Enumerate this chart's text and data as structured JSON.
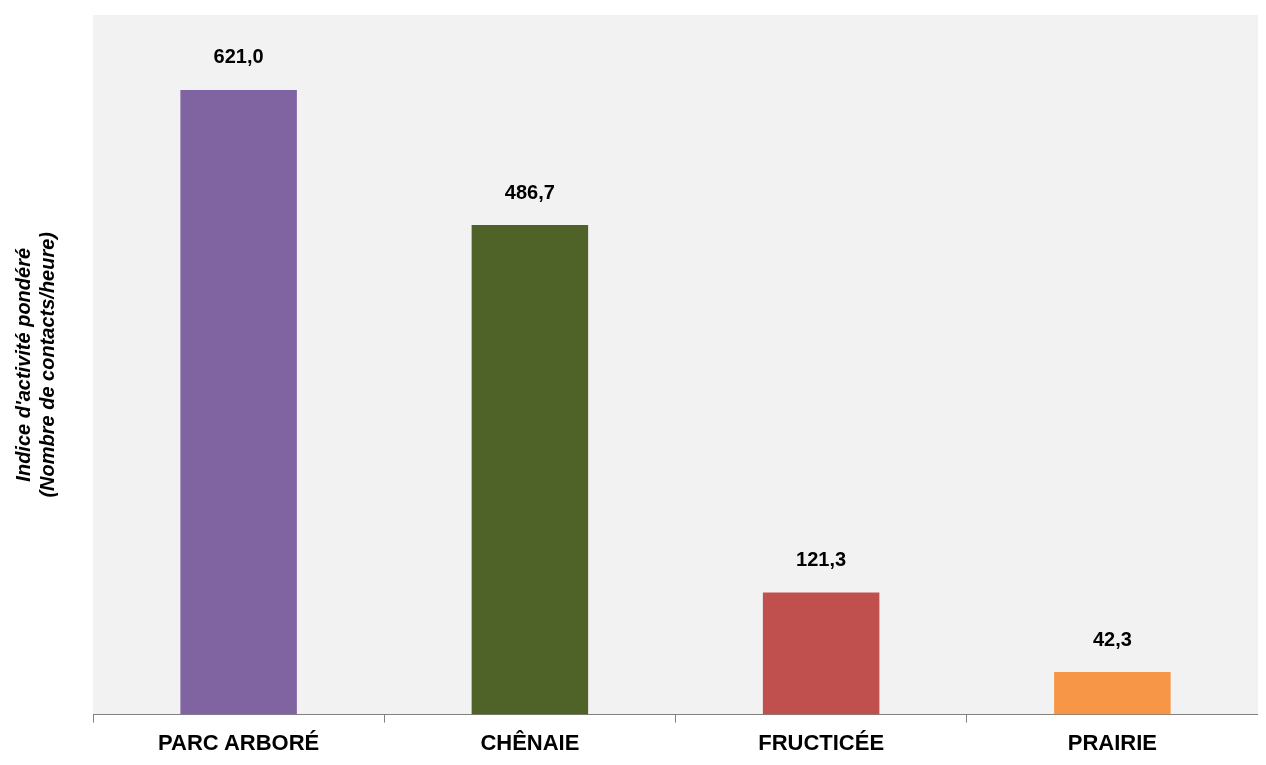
{
  "chart_data": {
    "type": "bar",
    "ylabel": "Indice d'activité pondéré\n(Nombre de contacts/heure)",
    "categories": [
      "PARC ARBORÉ",
      "CHÊNAIE",
      "FRUCTICÉE",
      "PRAIRIE"
    ],
    "values": [
      621.0,
      486.7,
      121.3,
      42.3
    ],
    "colors": [
      "#8064a2",
      "#4f6228",
      "#c0504d",
      "#f79646"
    ],
    "value_labels": [
      "621,0",
      "486,7",
      "121,3",
      "42,3"
    ],
    "grid": false,
    "legend": false
  }
}
